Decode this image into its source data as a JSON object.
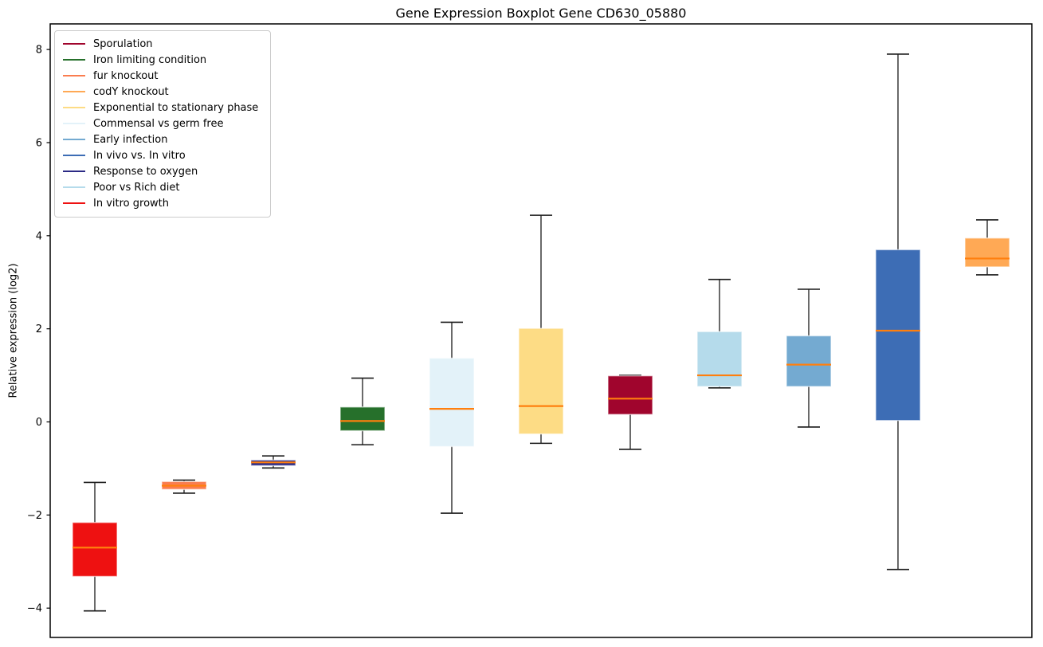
{
  "chart_data": {
    "type": "boxplot",
    "title": "Gene Expression Boxplot Gene CD630_05880",
    "ylabel": "Relative expression (log2)",
    "xlabel": "",
    "ylim": [
      -4.63,
      8.55
    ],
    "yticks": [
      -4,
      -2,
      0,
      2,
      4,
      6,
      8
    ],
    "grid": false,
    "x_tick_labels": [],
    "legend_position": "top-left",
    "median_color": "#ff7f0e",
    "whisker_color": "#1a1a1a",
    "legend": [
      {
        "label": "Sporulation",
        "color": "#a0052d"
      },
      {
        "label": "Iron limiting condition",
        "color": "#26702b"
      },
      {
        "label": "fur knockout",
        "color": "#fa7d4f"
      },
      {
        "label": "codY knockout",
        "color": "#ffa955"
      },
      {
        "label": "Exponential to stationary phase",
        "color": "#fddc85"
      },
      {
        "label": "Commensal vs germ free",
        "color": "#e3f2f9"
      },
      {
        "label": "Early infection",
        "color": "#74aad1"
      },
      {
        "label": "In vivo vs. In vitro",
        "color": "#3d6db5"
      },
      {
        "label": "Response to oxygen",
        "color": "#2b2a85"
      },
      {
        "label": "Poor vs Rich diet",
        "color": "#b5dbeb"
      },
      {
        "label": "In vitro growth",
        "color": "#ee1111"
      }
    ],
    "boxes": [
      {
        "label": "In vitro growth",
        "color": "#ee1111",
        "whisker_low": -4.06,
        "q1": -3.32,
        "median": -2.7,
        "q3": -2.16,
        "whisker_high": -1.3
      },
      {
        "label": "fur knockout",
        "color": "#fa7d4f",
        "whisker_low": -1.53,
        "q1": -1.45,
        "median": -1.37,
        "q3": -1.28,
        "whisker_high": -1.25
      },
      {
        "label": "Response to oxygen",
        "color": "#2b2a85",
        "whisker_low": -0.99,
        "q1": -0.94,
        "median": -0.87,
        "q3": -0.82,
        "whisker_high": -0.73
      },
      {
        "label": "Iron limiting condition",
        "color": "#26702b",
        "whisker_low": -0.49,
        "q1": -0.19,
        "median": 0.02,
        "q3": 0.32,
        "whisker_high": 0.94
      },
      {
        "label": "Commensal vs germ free",
        "color": "#e3f2f9",
        "whisker_low": -1.96,
        "q1": -0.53,
        "median": 0.28,
        "q3": 1.37,
        "whisker_high": 2.14
      },
      {
        "label": "Exponential to stationary phase",
        "color": "#fddc85",
        "whisker_low": -0.46,
        "q1": -0.26,
        "median": 0.34,
        "q3": 2.01,
        "whisker_high": 4.44
      },
      {
        "label": "Sporulation",
        "color": "#a0052d",
        "whisker_low": -0.59,
        "q1": 0.16,
        "median": 0.5,
        "q3": 0.99,
        "whisker_high": 1.0
      },
      {
        "label": "Poor vs Rich diet",
        "color": "#b5dbeb",
        "whisker_low": 0.73,
        "q1": 0.76,
        "median": 1.0,
        "q3": 1.94,
        "whisker_high": 3.06
      },
      {
        "label": "Early infection",
        "color": "#74aad1",
        "whisker_low": -0.11,
        "q1": 0.76,
        "median": 1.23,
        "q3": 1.85,
        "whisker_high": 2.85
      },
      {
        "label": "In vivo vs. In vitro",
        "color": "#3d6db5",
        "whisker_low": -3.17,
        "q1": 0.03,
        "median": 1.96,
        "q3": 3.7,
        "whisker_high": 7.9
      },
      {
        "label": "codY knockout",
        "color": "#ffa955",
        "whisker_low": 3.16,
        "q1": 3.33,
        "median": 3.51,
        "q3": 3.95,
        "whisker_high": 4.34
      }
    ]
  }
}
